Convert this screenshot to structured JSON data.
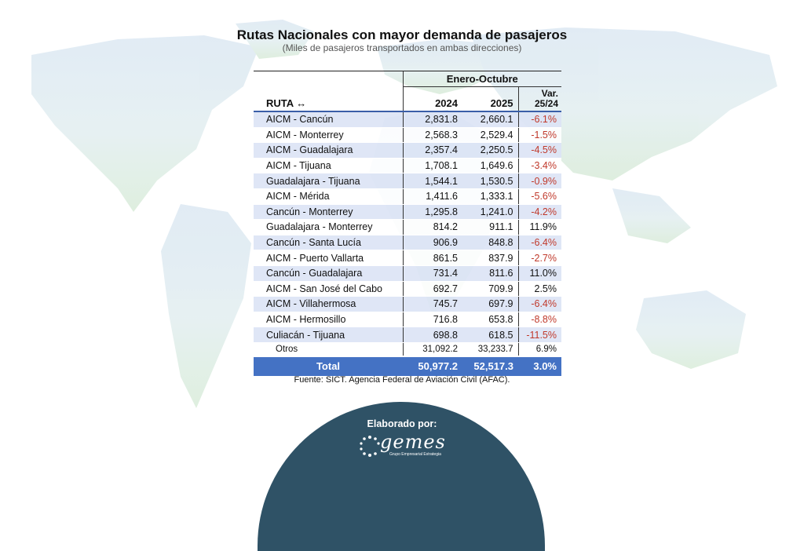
{
  "colors": {
    "header_blue": "#4472c4",
    "row_tint": "#dbe3f5",
    "negative_red": "#c0392b",
    "footer_navy": "#2f5266"
  },
  "header": {
    "title": "Rutas Nacionales con mayor demanda de pasajeros",
    "subtitle": "(Miles de pasajeros transportados en ambas direcciones)"
  },
  "chart_data": {
    "type": "table",
    "title": "Rutas Nacionales con mayor demanda de pasajeros",
    "subtitle": "(Miles de pasajeros transportados en ambas direcciones)",
    "period": "Enero-Octubre",
    "columns": [
      "RUTA ↔",
      "2024",
      "2025",
      "Var. 25/24"
    ],
    "column_var_line1": "Var.",
    "column_var_line2": "25/24",
    "rows": [
      {
        "route": "AICM - Cancún",
        "y2024": "2,831.8",
        "y2025": "2,660.1",
        "var": "-6.1%"
      },
      {
        "route": "AICM - Monterrey",
        "y2024": "2,568.3",
        "y2025": "2,529.4",
        "var": "-1.5%"
      },
      {
        "route": "AICM - Guadalajara",
        "y2024": "2,357.4",
        "y2025": "2,250.5",
        "var": "-4.5%"
      },
      {
        "route": "AICM - Tijuana",
        "y2024": "1,708.1",
        "y2025": "1,649.6",
        "var": "-3.4%"
      },
      {
        "route": "Guadalajara - Tijuana",
        "y2024": "1,544.1",
        "y2025": "1,530.5",
        "var": "-0.9%"
      },
      {
        "route": "AICM - Mérida",
        "y2024": "1,411.6",
        "y2025": "1,333.1",
        "var": "-5.6%"
      },
      {
        "route": "Cancún - Monterrey",
        "y2024": "1,295.8",
        "y2025": "1,241.0",
        "var": "-4.2%"
      },
      {
        "route": "Guadalajara - Monterrey",
        "y2024": "814.2",
        "y2025": "911.1",
        "var": "11.9%"
      },
      {
        "route": "Cancún - Santa Lucía",
        "y2024": "906.9",
        "y2025": "848.8",
        "var": "-6.4%"
      },
      {
        "route": "AICM - Puerto Vallarta",
        "y2024": "861.5",
        "y2025": "837.9",
        "var": "-2.7%"
      },
      {
        "route": "Cancún - Guadalajara",
        "y2024": "731.4",
        "y2025": "811.6",
        "var": "11.0%"
      },
      {
        "route": "AICM - San José del Cabo",
        "y2024": "692.7",
        "y2025": "709.9",
        "var": "2.5%"
      },
      {
        "route": "AICM - Villahermosa",
        "y2024": "745.7",
        "y2025": "697.9",
        "var": "-6.4%"
      },
      {
        "route": "AICM - Hermosillo",
        "y2024": "716.8",
        "y2025": "653.8",
        "var": "-8.8%"
      },
      {
        "route": "Culiacán - Tijuana",
        "y2024": "698.8",
        "y2025": "618.5",
        "var": "-11.5%"
      }
    ],
    "others": {
      "route": "Otros",
      "y2024": "31,092.2",
      "y2025": "33,233.7",
      "var": "6.9%"
    },
    "total": {
      "route": "Total",
      "y2024": "50,977.2",
      "y2025": "52,517.3",
      "var": "3.0%"
    }
  },
  "footer": {
    "source": "Fuente: SICT. Agencia Federal de Aviación Civil (AFAC).",
    "made_by": "Elaborado por:",
    "logo_text": "gemes",
    "logo_tagline": "Grupo Empresarial Estrategia"
  }
}
